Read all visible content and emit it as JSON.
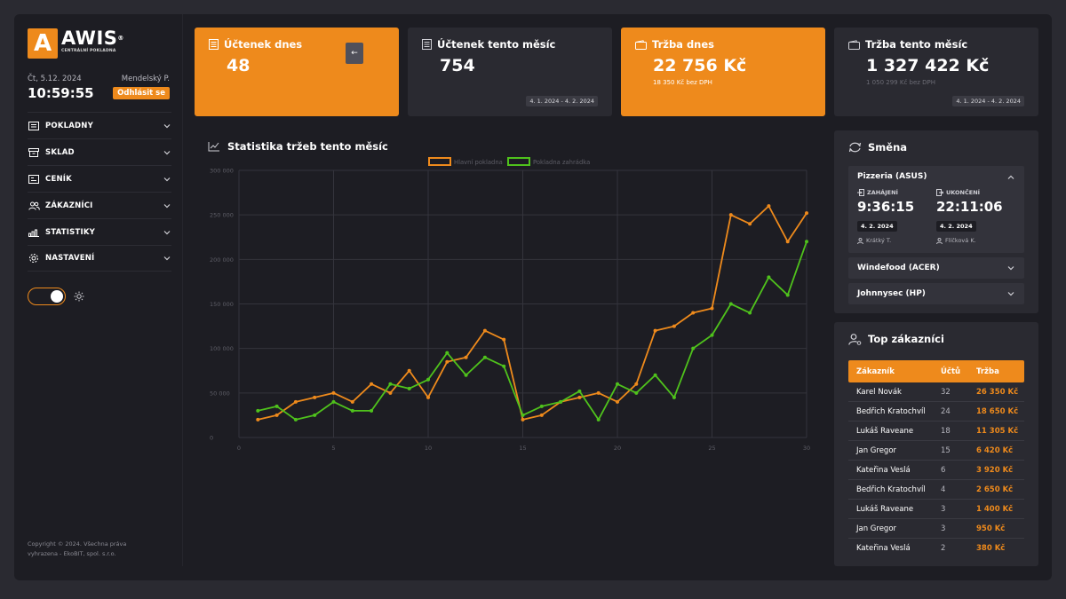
{
  "brand": {
    "mark": "A",
    "name": "AWIS",
    "reg": "®",
    "subtitle": "CENTRÁLNÍ POKLADNA"
  },
  "session": {
    "date": "Čt, 5.12. 2024",
    "time": "10:59:55",
    "user": "Mendelský P.",
    "logout_label": "Odhlásit se"
  },
  "menu": [
    {
      "label": "POKLADNY",
      "icon": "register-icon"
    },
    {
      "label": "SKLAD",
      "icon": "warehouse-icon"
    },
    {
      "label": "CENÍK",
      "icon": "price-tag-icon"
    },
    {
      "label": "ZÁKAZNÍCI",
      "icon": "customers-icon"
    },
    {
      "label": "STATISTIKY",
      "icon": "statistics-icon"
    },
    {
      "label": "NASTAVENÍ",
      "icon": "gear-icon"
    }
  ],
  "theme_toggle": {
    "state": "on"
  },
  "copyright": {
    "line1": "Copyright © 2024. Všechna práva",
    "line2": "vyhrazena - EkoBIT, spol. s.r.o."
  },
  "stats": [
    {
      "title": "Účtenek dnes",
      "value": "48",
      "sub": "",
      "range": "",
      "style": "orange"
    },
    {
      "title": "Účtenek tento měsíc",
      "value": "754",
      "sub": "",
      "range": "4. 1. 2024 - 4. 2. 2024",
      "style": "dark"
    },
    {
      "title": "Tržba dnes",
      "value": "22 756 Kč",
      "sub": "18 350 Kč bez DPH",
      "range": "",
      "style": "orange"
    },
    {
      "title": "Tržba tento měsíc",
      "value": "1 327 422 Kč",
      "sub": "1 050 299 Kč bez DPH",
      "range": "4. 1. 2024 - 4. 2. 2024",
      "style": "dark"
    }
  ],
  "collapse_button": {
    "label": "←"
  },
  "chart": {
    "title": "Statistika tržeb tento měsíc"
  },
  "chart_data": {
    "type": "line",
    "title": "Statistika tržeb tento měsíc",
    "xlabel": "",
    "ylabel": "",
    "xlim": [
      0,
      30
    ],
    "ylim": [
      0,
      300000
    ],
    "xticks": [
      "0",
      "5",
      "10",
      "15",
      "20",
      "25",
      "30"
    ],
    "yticks": [
      "0",
      "50 000",
      "100 000",
      "150 000",
      "200 000",
      "250 000",
      "300 000"
    ],
    "grid": true,
    "legend": "top",
    "x": [
      1,
      2,
      3,
      4,
      5,
      6,
      7,
      8,
      9,
      10,
      11,
      12,
      13,
      14,
      15,
      16,
      17,
      18,
      19,
      20,
      21,
      22,
      23,
      24,
      25,
      26,
      27,
      28,
      29,
      30
    ],
    "series": [
      {
        "name": "Hlavní pokladna",
        "color": "#ee8a1c",
        "values": [
          20000,
          25000,
          40000,
          45000,
          50000,
          40000,
          60000,
          50000,
          75000,
          45000,
          85000,
          90000,
          120000,
          110000,
          20000,
          25000,
          40000,
          45000,
          50000,
          40000,
          60000,
          120000,
          125000,
          140000,
          145000,
          250000,
          240000,
          260000,
          220000,
          252000
        ]
      },
      {
        "name": "Pokladna zahrádka",
        "color": "#4fc21c",
        "values": [
          30000,
          35000,
          20000,
          25000,
          40000,
          30000,
          30000,
          60000,
          55000,
          65000,
          95000,
          70000,
          90000,
          80000,
          25000,
          35000,
          40000,
          52000,
          20000,
          60000,
          50000,
          70000,
          45000,
          100000,
          115000,
          150000,
          140000,
          180000,
          160000,
          220000
        ]
      }
    ]
  },
  "shift": {
    "title": "Směna",
    "open": {
      "name": "Pizzeria (ASUS)",
      "start_label": "ZAHÁJENÍ",
      "start_time": "9:36:15",
      "start_date": "4. 2. 2024",
      "start_user": "Krátký T.",
      "end_label": "UKONČENÍ",
      "end_time": "22:11:06",
      "end_date": "4. 2. 2024",
      "end_user": "Flíčková K."
    },
    "others": [
      {
        "name": "Windefood (ACER)"
      },
      {
        "name": "Johnnysec (HP)"
      }
    ]
  },
  "top_customers": {
    "title": "Top zákazníci",
    "headers": {
      "name": "Zákazník",
      "count": "Účtů",
      "revenue": "Tržba"
    },
    "rows": [
      {
        "name": "Karel Novák",
        "count": "32",
        "revenue": "26 350 Kč"
      },
      {
        "name": "Bedřich Kratochvíl",
        "count": "24",
        "revenue": "18 650 Kč"
      },
      {
        "name": "Lukáš Raveane",
        "count": "18",
        "revenue": "11 305 Kč"
      },
      {
        "name": "Jan Gregor",
        "count": "15",
        "revenue": "6 420 Kč"
      },
      {
        "name": "Kateřina Veslá",
        "count": "6",
        "revenue": "3 920 Kč"
      },
      {
        "name": "Bedřich Kratochvíl",
        "count": "4",
        "revenue": "2 650 Kč"
      },
      {
        "name": "Lukáš Raveane",
        "count": "3",
        "revenue": "1 400 Kč"
      },
      {
        "name": "Jan Gregor",
        "count": "3",
        "revenue": "950 Kč"
      },
      {
        "name": "Kateřina Veslá",
        "count": "2",
        "revenue": "380 Kč"
      }
    ]
  }
}
